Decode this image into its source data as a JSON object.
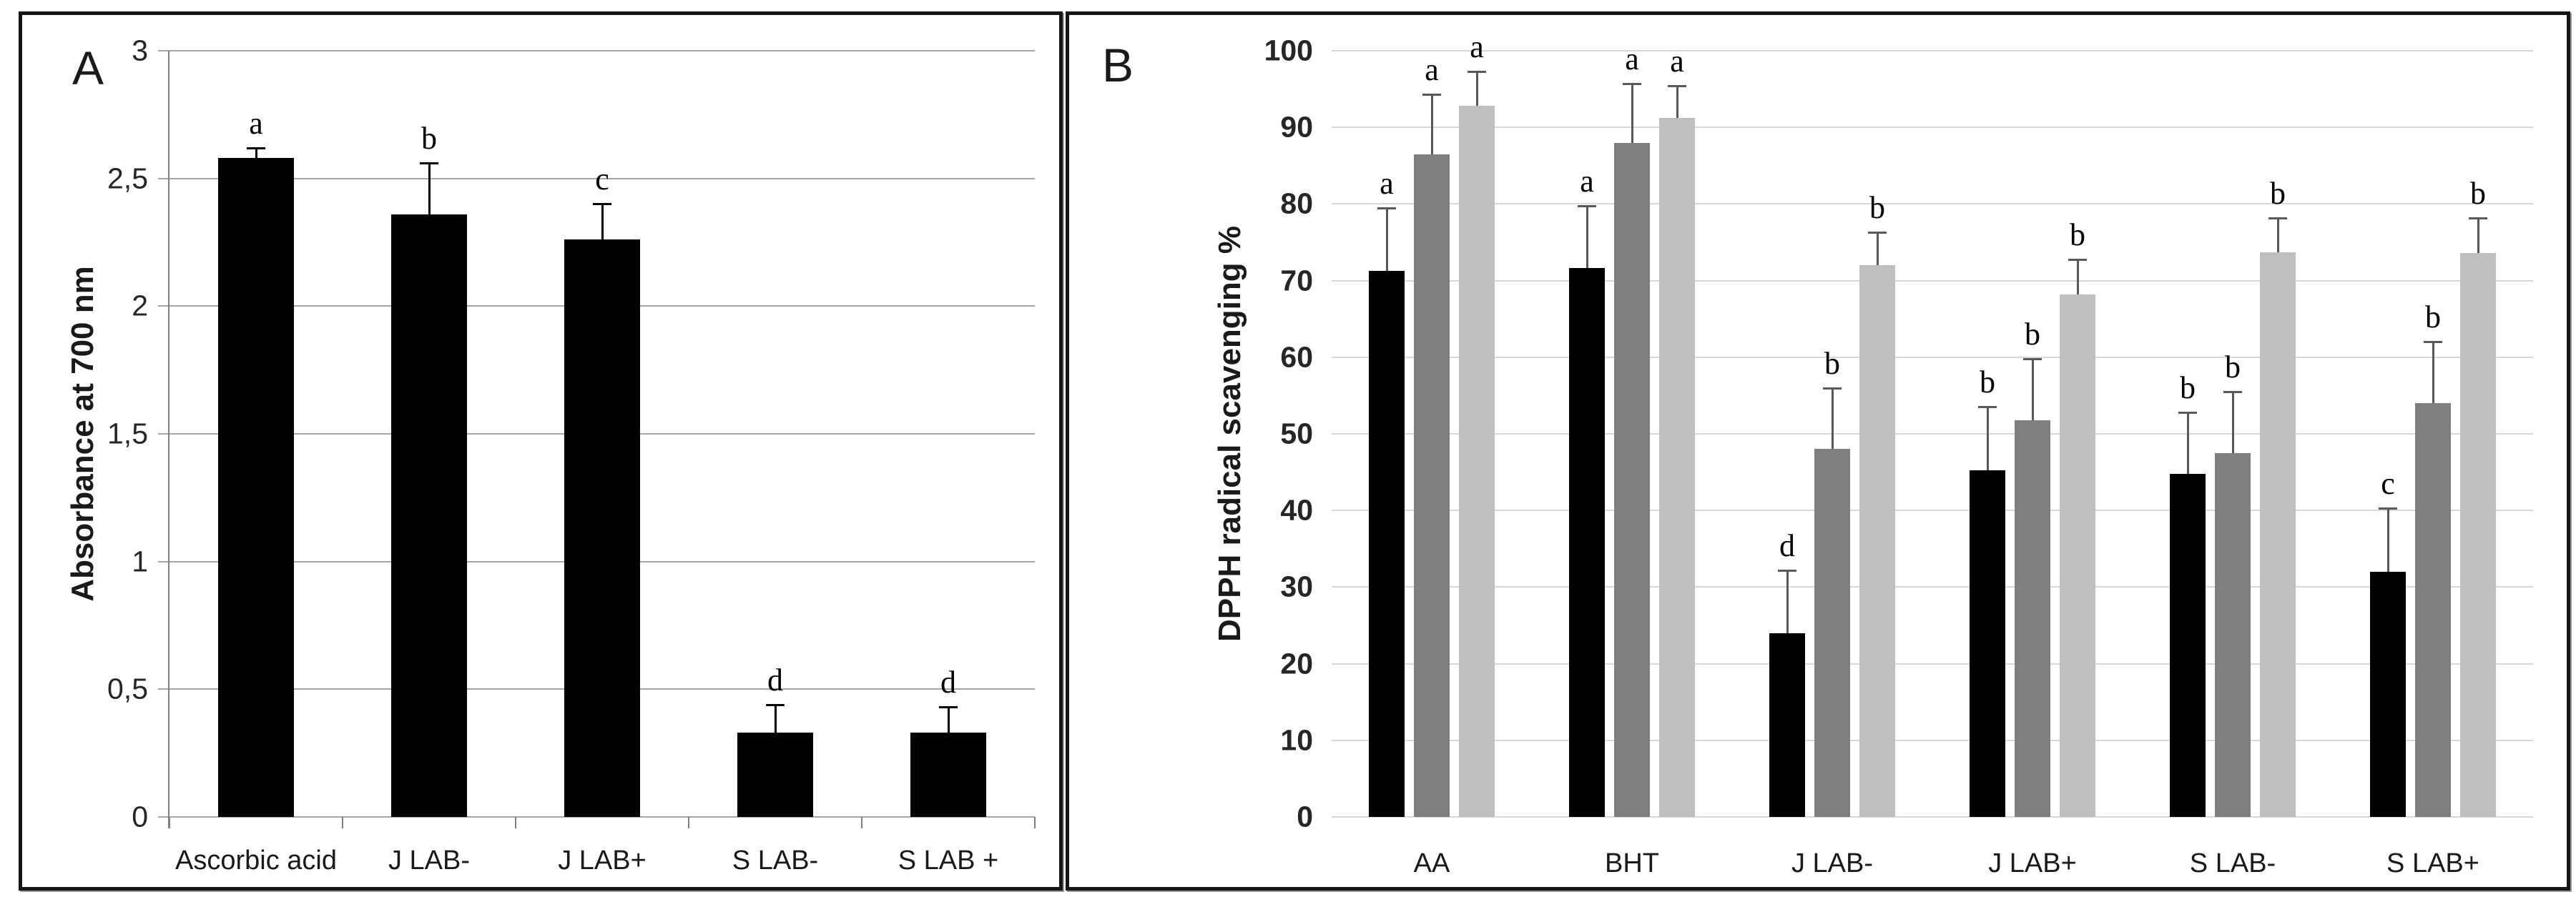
{
  "panels": {
    "a": {
      "label": "A",
      "y_axis_title": "Absorbance at 700 nm"
    },
    "b": {
      "label": "B",
      "y_axis_title": "DPPH radical scavenging %"
    }
  },
  "colors": {
    "bar_black": "#000000",
    "bar_dark_gray": "#7f7f7f",
    "bar_light_gray": "#bfbfbf",
    "grid_a": "#a6a6a6",
    "grid_b": "#d9d9d9",
    "axis_line": "#808080",
    "whisker_a": "#000000",
    "whisker_b": "#595959",
    "panel_border": "#161616"
  },
  "chart_data": [
    {
      "id": "panel_a",
      "type": "bar",
      "title": "",
      "xlabel": "",
      "ylabel": "Absorbance at 700 nm",
      "ylim": [
        0,
        3
      ],
      "ytick_step": 0.5,
      "ytick_labels": [
        "0",
        "0,5",
        "1",
        "1,5",
        "2",
        "2,5",
        "3"
      ],
      "grid": "horizontal",
      "legend_position": "none",
      "categories": [
        "Ascorbic acid",
        "J LAB-",
        "J LAB+",
        "S LAB-",
        "S LAB +"
      ],
      "series": [
        {
          "name": "absorbance",
          "color": "#000000",
          "values": [
            2.58,
            2.36,
            2.26,
            0.33,
            0.33
          ],
          "errors": [
            0.04,
            0.2,
            0.14,
            0.11,
            0.1
          ],
          "sig_letters": [
            "a",
            "b",
            "c",
            "d",
            "d"
          ]
        }
      ]
    },
    {
      "id": "panel_b",
      "type": "grouped-bar",
      "title": "",
      "xlabel": "",
      "ylabel": "DPPH radical scavenging %",
      "ylim": [
        0,
        100
      ],
      "ytick_step": 10,
      "ytick_labels": [
        "0",
        "10",
        "20",
        "30",
        "40",
        "50",
        "60",
        "70",
        "80",
        "90",
        "100"
      ],
      "grid": "horizontal",
      "legend_position": "none",
      "categories": [
        "AA",
        "BHT",
        "J LAB-",
        "J LAB+",
        "S LAB-",
        "S LAB+"
      ],
      "series": [
        {
          "name": "series_1_black",
          "color": "#000000",
          "values": [
            71.3,
            71.6,
            24.0,
            45.2,
            44.8,
            32.0
          ],
          "errors": [
            8.2,
            8.2,
            8.2,
            8.3,
            8.0,
            8.3
          ],
          "sig_letters": [
            "a",
            "a",
            "d",
            "b",
            "b",
            "c"
          ]
        },
        {
          "name": "series_2_dark_gray",
          "color": "#7f7f7f",
          "values": [
            86.5,
            88.0,
            48.0,
            51.8,
            47.5,
            54.0
          ],
          "errors": [
            7.8,
            7.7,
            8.0,
            8.0,
            8.0,
            8.0
          ],
          "sig_letters": [
            "a",
            "a",
            "b",
            "b",
            "b",
            "b"
          ]
        },
        {
          "name": "series_3_light_gray",
          "color": "#bfbfbf",
          "values": [
            92.8,
            91.2,
            72.0,
            68.2,
            73.7,
            73.6
          ],
          "errors": [
            4.5,
            4.2,
            4.3,
            4.6,
            4.5,
            4.6
          ],
          "sig_letters": [
            "a",
            "a",
            "b",
            "b",
            "b",
            "b"
          ]
        }
      ]
    }
  ]
}
